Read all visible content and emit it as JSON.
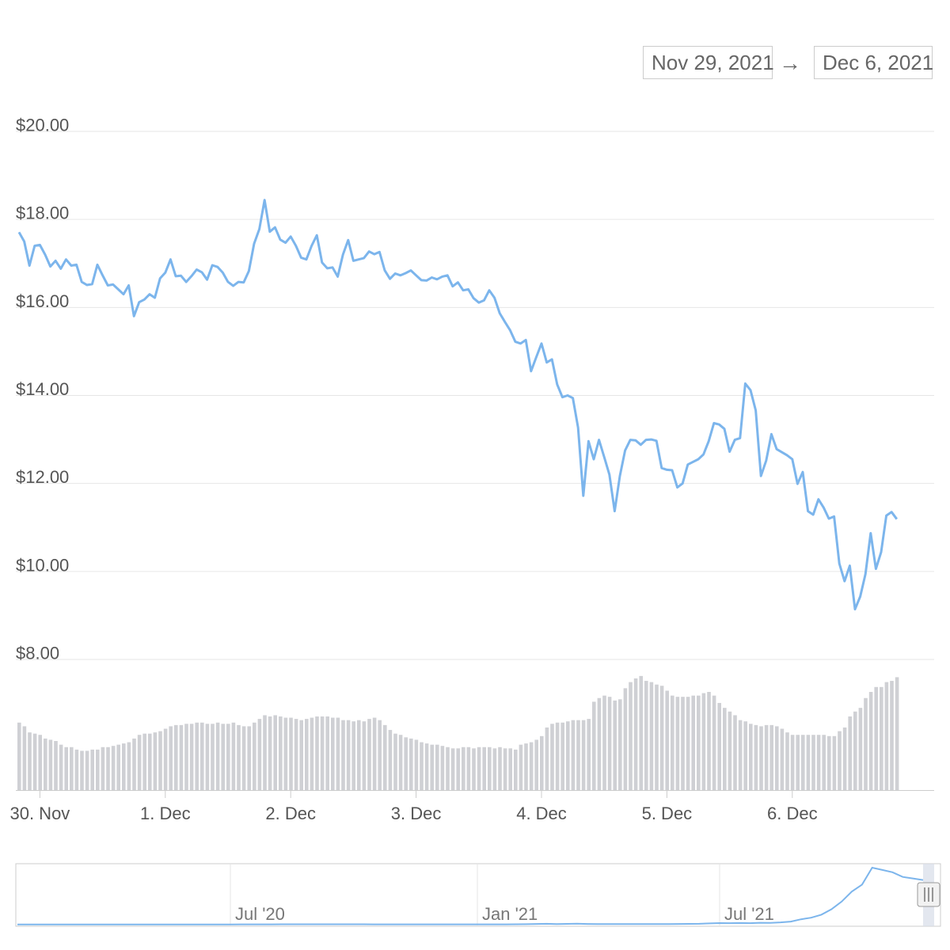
{
  "range_selector": {
    "from": "Nov 29, 2021",
    "arrow": "→",
    "to": "Dec 6, 2021"
  },
  "chart_data": {
    "type": "line",
    "price_series": {
      "start": "2021-11-29 20:00",
      "step_hours": 1,
      "values": [
        17.71,
        17.5,
        16.95,
        17.4,
        17.42,
        17.2,
        16.93,
        17.06,
        16.88,
        17.09,
        16.95,
        16.97,
        16.58,
        16.51,
        16.53,
        16.97,
        16.73,
        16.5,
        16.52,
        16.41,
        16.3,
        16.5,
        15.8,
        16.12,
        16.18,
        16.3,
        16.22,
        16.66,
        16.79,
        17.09,
        16.71,
        16.72,
        16.58,
        16.71,
        16.86,
        16.8,
        16.63,
        16.96,
        16.92,
        16.79,
        16.58,
        16.49,
        16.58,
        16.57,
        16.83,
        17.45,
        17.78,
        18.44,
        17.72,
        17.82,
        17.54,
        17.47,
        17.61,
        17.4,
        17.13,
        17.09,
        17.4,
        17.64,
        17.02,
        16.89,
        16.91,
        16.7,
        17.2,
        17.53,
        17.06,
        17.09,
        17.12,
        17.27,
        17.21,
        17.26,
        16.84,
        16.65,
        16.77,
        16.73,
        16.78,
        16.84,
        16.73,
        16.62,
        16.61,
        16.68,
        16.64,
        16.7,
        16.73,
        16.48,
        16.57,
        16.39,
        16.41,
        16.21,
        16.11,
        16.16,
        16.39,
        16.22,
        15.87,
        15.67,
        15.48,
        15.22,
        15.18,
        15.26,
        14.55,
        14.87,
        15.18,
        14.75,
        14.82,
        14.25,
        13.96,
        14.0,
        13.94,
        13.27,
        11.72,
        12.96,
        12.55,
        12.99,
        12.6,
        12.2,
        11.37,
        12.17,
        12.75,
        12.99,
        12.98,
        12.88,
        12.99,
        13.0,
        12.97,
        12.35,
        12.31,
        12.3,
        11.91,
        12.0,
        12.43,
        12.49,
        12.55,
        12.66,
        12.96,
        13.37,
        13.34,
        13.24,
        12.72,
        12.99,
        13.03,
        14.27,
        14.12,
        13.66,
        12.17,
        12.52,
        13.12,
        12.78,
        12.71,
        12.64,
        12.55,
        11.99,
        12.26,
        11.37,
        11.29,
        11.64,
        11.45,
        11.2,
        11.25,
        10.18,
        9.78,
        10.13,
        9.14,
        9.43,
        9.94,
        10.87,
        10.06,
        10.44,
        11.27,
        11.35,
        11.19
      ]
    },
    "volume_bars": [
      0.55,
      0.52,
      0.47,
      0.46,
      0.45,
      0.42,
      0.41,
      0.4,
      0.37,
      0.35,
      0.35,
      0.33,
      0.32,
      0.32,
      0.33,
      0.33,
      0.35,
      0.35,
      0.36,
      0.37,
      0.38,
      0.39,
      0.42,
      0.45,
      0.46,
      0.46,
      0.47,
      0.48,
      0.5,
      0.52,
      0.53,
      0.53,
      0.54,
      0.54,
      0.55,
      0.55,
      0.54,
      0.54,
      0.55,
      0.54,
      0.54,
      0.55,
      0.53,
      0.52,
      0.52,
      0.55,
      0.58,
      0.61,
      0.6,
      0.61,
      0.6,
      0.59,
      0.59,
      0.58,
      0.57,
      0.58,
      0.59,
      0.6,
      0.6,
      0.6,
      0.59,
      0.59,
      0.57,
      0.57,
      0.56,
      0.57,
      0.56,
      0.58,
      0.59,
      0.57,
      0.53,
      0.49,
      0.46,
      0.45,
      0.43,
      0.42,
      0.41,
      0.39,
      0.38,
      0.37,
      0.37,
      0.36,
      0.35,
      0.34,
      0.34,
      0.35,
      0.35,
      0.34,
      0.35,
      0.35,
      0.35,
      0.34,
      0.35,
      0.34,
      0.34,
      0.33,
      0.37,
      0.38,
      0.39,
      0.41,
      0.44,
      0.51,
      0.54,
      0.55,
      0.55,
      0.56,
      0.57,
      0.57,
      0.57,
      0.58,
      0.72,
      0.75,
      0.77,
      0.76,
      0.73,
      0.74,
      0.83,
      0.88,
      0.91,
      0.93,
      0.89,
      0.88,
      0.86,
      0.85,
      0.81,
      0.77,
      0.76,
      0.76,
      0.76,
      0.77,
      0.77,
      0.79,
      0.8,
      0.77,
      0.71,
      0.67,
      0.64,
      0.61,
      0.57,
      0.56,
      0.54,
      0.53,
      0.52,
      0.53,
      0.53,
      0.52,
      0.5,
      0.47,
      0.45,
      0.45,
      0.45,
      0.45,
      0.45,
      0.45,
      0.45,
      0.44,
      0.44,
      0.48,
      0.51,
      0.6,
      0.64,
      0.67,
      0.75,
      0.8,
      0.84,
      0.84,
      0.88,
      0.89,
      0.92
    ],
    "yticks": [
      "$20.00",
      "$18.00",
      "$16.00",
      "$14.00",
      "$12.00",
      "$10.00",
      "$8.00"
    ],
    "ylim": [
      8,
      20
    ],
    "xticks": [
      "30. Nov",
      "1. Dec",
      "2. Dec",
      "3. Dec",
      "4. Dec",
      "5. Dec",
      "6. Dec"
    ],
    "navigator": {
      "labels": [
        "Jul '20",
        "Jan '21",
        "Jul '21"
      ],
      "values": [
        0.3,
        0.3,
        0.3,
        0.3,
        0.3,
        0.3,
        0.3,
        0.3,
        0.3,
        0.3,
        0.3,
        0.3,
        0.3,
        0.3,
        0.3,
        0.3,
        0.3,
        0.3,
        0.3,
        0.3,
        0.35,
        0.35,
        0.4,
        0.4,
        0.45,
        0.45,
        0.5,
        0.5,
        0.5,
        0.55,
        0.55,
        0.55,
        0.5,
        0.5,
        0.5,
        0.45,
        0.45,
        0.45,
        0.45,
        0.45,
        0.45,
        0.45,
        0.45,
        0.45,
        0.45,
        0.45,
        0.45,
        0.45,
        0.45,
        0.5,
        0.6,
        0.9,
        1.1,
        0.8,
        1.0,
        1.2,
        0.9,
        0.8,
        0.8,
        0.7,
        0.7,
        0.7,
        0.8,
        0.8,
        0.8,
        0.9,
        1.0,
        1.1,
        1.6,
        2.1,
        2.0,
        2.2,
        2.0,
        2.5,
        2.3,
        3.0,
        4.0,
        7.0,
        9.0,
        13.0,
        20.0,
        30.0,
        43.0,
        52.0,
        74.0,
        71.0,
        68.0,
        62.0,
        60.0,
        58.0
      ]
    },
    "colors": {
      "line": "#7cb5ec",
      "volume": "#cfd0d4",
      "grid": "#e6e6e6",
      "axis": "#cccccc",
      "nav_mask": "#d7dde8"
    }
  }
}
